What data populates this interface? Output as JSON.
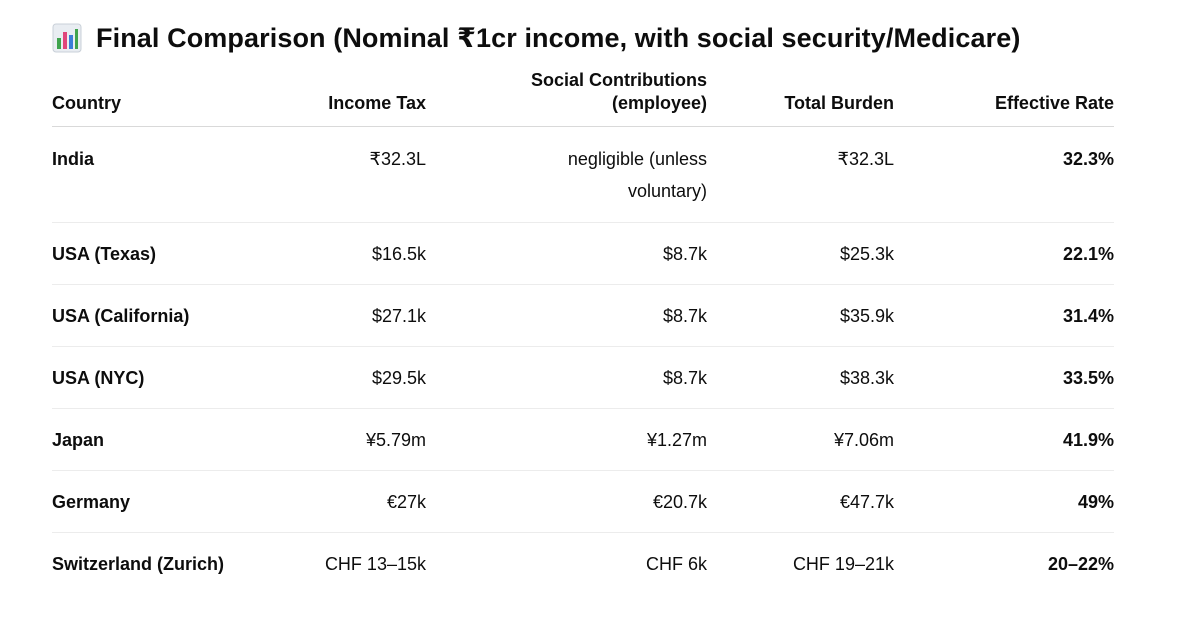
{
  "heading": {
    "icon": "bar-chart-icon",
    "title": "Final Comparison (Nominal ₹1cr income, with social security/Medicare)"
  },
  "table": {
    "headers": {
      "country": "Country",
      "income_tax": "Income Tax",
      "social_line1": "Social Contributions",
      "social_line2": "(employee)",
      "total": "Total Burden",
      "rate": "Effective Rate"
    },
    "rows": [
      {
        "country": "India",
        "income_tax": "₹32.3L",
        "social_line1": "negligible (unless",
        "social_line2": "voluntary)",
        "total": "₹32.3L",
        "rate": "32.3%"
      },
      {
        "country": "USA (Texas)",
        "income_tax": "$16.5k",
        "social_line1": "$8.7k",
        "total": "$25.3k",
        "rate": "22.1%"
      },
      {
        "country": "USA (California)",
        "income_tax": "$27.1k",
        "social_line1": "$8.7k",
        "total": "$35.9k",
        "rate": "31.4%"
      },
      {
        "country": "USA (NYC)",
        "income_tax": "$29.5k",
        "social_line1": "$8.7k",
        "total": "$38.3k",
        "rate": "33.5%"
      },
      {
        "country": "Japan",
        "income_tax": "¥5.79m",
        "social_line1": "¥1.27m",
        "total": "¥7.06m",
        "rate": "41.9%"
      },
      {
        "country": "Germany",
        "income_tax": "€27k",
        "social_line1": "€20.7k",
        "total": "€47.7k",
        "rate": "49%"
      },
      {
        "country": "Switzerland (Zurich)",
        "income_tax": "CHF 13–15k",
        "social_line1": "CHF 6k",
        "total": "CHF 19–21k",
        "rate": "20–22%"
      }
    ]
  }
}
